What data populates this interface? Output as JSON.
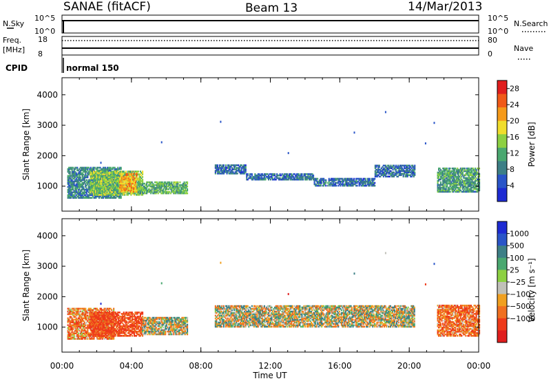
{
  "header": {
    "station": "SANAE (fitACF)",
    "beam": "Beam 13",
    "date": "14/Mar/2013"
  },
  "top_panels": {
    "sky_label": "N.Sky",
    "search_label": "N.Search",
    "sky_ticks": [
      "10^5",
      "10^0"
    ],
    "search_ticks": [
      "10^5",
      "10^0"
    ],
    "freq_label": "Freq.",
    "freq_unit": "[MHz]",
    "freq_ticks": [
      "18",
      "8"
    ],
    "nave_label": "Nave",
    "nave_ticks": [
      "80",
      "0"
    ],
    "cpid_label": "CPID",
    "cpid_value": "normal 150"
  },
  "colors": {
    "axis": "#000000",
    "power_scale": [
      "#1e2bd2",
      "#2a55c8",
      "#3d7f86",
      "#4aa870",
      "#8dd042",
      "#f0dd2c",
      "#f59a1a",
      "#f05a18",
      "#e01e1e"
    ],
    "velocity_scale": [
      "#1e2bd2",
      "#2a55c8",
      "#3d7f86",
      "#4aa870",
      "#8dd042",
      "#c0c0b8",
      "#f0a020",
      "#f07020",
      "#ee3a1a",
      "#e01e1e"
    ]
  },
  "chart_data": [
    {
      "type": "heatmap",
      "title": "",
      "xlabel": "Time UT",
      "ylabel": "Slant Range [km]",
      "x_ticks": [
        "00:00",
        "04:00",
        "08:00",
        "12:00",
        "16:00",
        "20:00",
        "00:00"
      ],
      "xlim_hours": [
        0,
        24
      ],
      "ylim_km": [
        180,
        4560
      ],
      "y_ticks": [
        1000,
        2000,
        3000,
        4000
      ],
      "colorbar": {
        "label": "Power [dB]",
        "ticks": [
          "4",
          "8",
          "12",
          "16",
          "20",
          "24",
          "28"
        ],
        "range": [
          0,
          30
        ]
      },
      "regions": [
        {
          "t0": 0.3,
          "t1": 3.4,
          "r0": 600,
          "r1": 1600,
          "value_db": 8
        },
        {
          "t0": 1.6,
          "t1": 4.6,
          "r0": 700,
          "r1": 1500,
          "value_db": 14
        },
        {
          "t0": 3.3,
          "t1": 4.3,
          "r0": 800,
          "r1": 1400,
          "value_db": 22
        },
        {
          "t0": 4.3,
          "t1": 7.2,
          "r0": 750,
          "r1": 1150,
          "value_db": 12
        },
        {
          "t0": 8.8,
          "t1": 10.6,
          "r0": 1400,
          "r1": 1700,
          "value_db": 6
        },
        {
          "t0": 10.6,
          "t1": 14.5,
          "r0": 1200,
          "r1": 1400,
          "value_db": 6
        },
        {
          "t0": 14.5,
          "t1": 18.0,
          "r0": 1000,
          "r1": 1250,
          "value_db": 6
        },
        {
          "t0": 18.0,
          "t1": 20.3,
          "r0": 1300,
          "r1": 1700,
          "value_db": 6
        },
        {
          "t0": 21.6,
          "t1": 24.0,
          "r0": 800,
          "r1": 1600,
          "value_db": 10
        }
      ],
      "isolated_points_time_h": [
        2.2,
        5.7,
        9.1,
        13.0,
        16.8,
        18.6,
        20.9,
        21.4
      ],
      "grid": false,
      "legend": "colorbar right"
    },
    {
      "type": "heatmap",
      "title": "",
      "xlabel": "Time UT",
      "ylabel": "Slant Range [km]",
      "x_ticks": [
        "00:00",
        "04:00",
        "08:00",
        "12:00",
        "16:00",
        "20:00",
        "00:00"
      ],
      "xlim_hours": [
        0,
        24
      ],
      "ylim_km": [
        180,
        4560
      ],
      "y_ticks": [
        1000,
        2000,
        3000,
        4000
      ],
      "colorbar": {
        "label": "Velocity [m s⁻¹]",
        "ticks": [
          "1000",
          "500",
          "100",
          "25",
          "−25",
          "−100",
          "−500",
          "−1000"
        ]
      },
      "regions": [
        {
          "t0": 0.3,
          "t1": 3.0,
          "r0": 600,
          "r1": 1600,
          "value_ms": -150
        },
        {
          "t0": 1.6,
          "t1": 4.6,
          "r0": 700,
          "r1": 1500,
          "value_ms": -300
        },
        {
          "t0": 4.6,
          "t1": 7.2,
          "r0": 750,
          "r1": 1300,
          "value_ms": 0
        },
        {
          "t0": 8.8,
          "t1": 20.3,
          "r0": 1000,
          "r1": 1700,
          "value_ms": 0
        },
        {
          "t0": 21.6,
          "t1": 24.0,
          "r0": 700,
          "r1": 1700,
          "value_ms": -200
        }
      ],
      "grid": false,
      "legend": "colorbar right"
    }
  ]
}
